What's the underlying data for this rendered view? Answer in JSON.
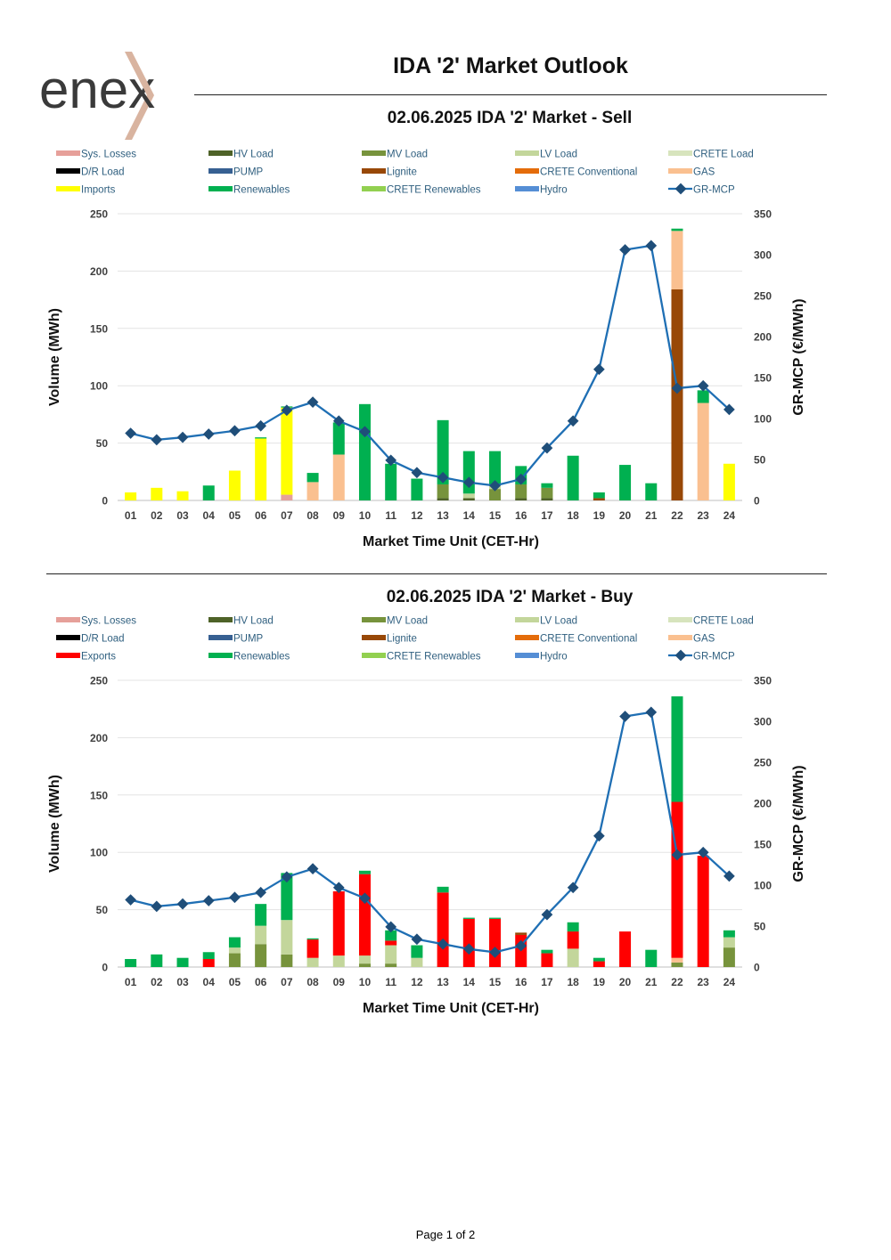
{
  "page": {
    "title": "IDA '2' Market Outlook",
    "logo_text": "enex",
    "footer": "Page 1 of 2"
  },
  "colors": {
    "sys_losses": "#e6a09a",
    "hv_load": "#4e6228",
    "mv_load": "#77933c",
    "lv_load": "#c3d69b",
    "crete_load": "#d7e4bd",
    "dr_load": "#000000",
    "pump": "#376092",
    "lignite": "#984807",
    "crete_conv": "#e46c0a",
    "gas": "#fac090",
    "imports": "#ffff00",
    "exports": "#ff0000",
    "renewables": "#00b050",
    "crete_renewables": "#92d050",
    "hydro": "#558ed5",
    "gr_mcp": "#1f6fb4",
    "gr_mcp_marker": "#1f4e79",
    "logo_accent": "#d9b4a0",
    "logo_text": "#3a3a3a"
  },
  "chart_data": [
    {
      "id": "sell",
      "type": "bar",
      "stacked": true,
      "title": "02.06.2025  IDA '2' Market - Sell",
      "xlabel": "Market Time Unit (CET-Hr)",
      "ylabel": "Volume (MWh)",
      "y2label": "GR-MCP (€/MWh)",
      "ylim": [
        0,
        250
      ],
      "yticks": [
        0,
        50,
        100,
        150,
        200,
        250
      ],
      "y2lim": [
        0,
        350
      ],
      "y2ticks": [
        0,
        50,
        100,
        150,
        200,
        250,
        300,
        350
      ],
      "categories": [
        "01",
        "02",
        "03",
        "04",
        "05",
        "06",
        "07",
        "08",
        "09",
        "10",
        "11",
        "12",
        "13",
        "14",
        "15",
        "16",
        "17",
        "18",
        "19",
        "20",
        "21",
        "22",
        "23",
        "24"
      ],
      "legend": [
        {
          "key": "sys_losses",
          "label": "Sys. Losses",
          "kind": "bar"
        },
        {
          "key": "hv_load",
          "label": "HV Load",
          "kind": "bar"
        },
        {
          "key": "mv_load",
          "label": "MV Load",
          "kind": "bar"
        },
        {
          "key": "lv_load",
          "label": "LV Load",
          "kind": "bar"
        },
        {
          "key": "crete_load",
          "label": "CRETE Load",
          "kind": "bar"
        },
        {
          "key": "dr_load",
          "label": "D/R Load",
          "kind": "bar"
        },
        {
          "key": "pump",
          "label": "PUMP",
          "kind": "bar"
        },
        {
          "key": "lignite",
          "label": "Lignite",
          "kind": "bar"
        },
        {
          "key": "crete_conv",
          "label": "CRETE Conventional",
          "kind": "bar"
        },
        {
          "key": "gas",
          "label": "GAS",
          "kind": "bar"
        },
        {
          "key": "imports",
          "label": "Imports",
          "kind": "bar"
        },
        {
          "key": "renewables",
          "label": "Renewables",
          "kind": "bar"
        },
        {
          "key": "crete_renewables",
          "label": "CRETE Renewables",
          "kind": "bar"
        },
        {
          "key": "hydro",
          "label": "Hydro",
          "kind": "bar"
        },
        {
          "key": "gr_mcp",
          "label": "GR-MCP",
          "kind": "line"
        }
      ],
      "series": [
        {
          "key": "sys_losses",
          "name": "Sys. Losses",
          "values": [
            0,
            0,
            0,
            0,
            0,
            0,
            5,
            0,
            0,
            0,
            0,
            0,
            0,
            0,
            0,
            0,
            0,
            0,
            0,
            0,
            0,
            0,
            0,
            0
          ]
        },
        {
          "key": "hv_load",
          "name": "HV Load",
          "values": [
            0,
            0,
            0,
            0,
            0,
            0,
            0,
            0,
            0,
            0,
            0,
            0,
            2,
            2,
            0,
            2,
            2,
            0,
            0,
            0,
            0,
            0,
            0,
            0
          ]
        },
        {
          "key": "mv_load",
          "name": "MV Load",
          "values": [
            0,
            0,
            0,
            0,
            0,
            0,
            0,
            0,
            0,
            0,
            0,
            0,
            12,
            0,
            10,
            12,
            9,
            0,
            0,
            0,
            0,
            0,
            0,
            0
          ]
        },
        {
          "key": "lv_load",
          "name": "LV Load",
          "values": [
            0,
            0,
            0,
            0,
            0,
            0,
            0,
            0,
            0,
            0,
            0,
            0,
            0,
            4,
            3,
            0,
            0,
            0,
            0,
            0,
            0,
            0,
            0,
            0
          ]
        },
        {
          "key": "lignite",
          "name": "Lignite",
          "values": [
            0,
            0,
            0,
            0,
            0,
            0,
            0,
            0,
            0,
            0,
            0,
            0,
            0,
            0,
            0,
            0,
            0,
            0,
            2,
            0,
            0,
            184,
            0,
            0
          ]
        },
        {
          "key": "gas",
          "name": "GAS",
          "values": [
            0,
            0,
            0,
            0,
            0,
            0,
            0,
            16,
            40,
            0,
            0,
            0,
            0,
            0,
            0,
            0,
            0,
            0,
            0,
            0,
            0,
            51,
            85,
            0
          ]
        },
        {
          "key": "imports",
          "name": "Imports",
          "values": [
            7,
            11,
            8,
            0,
            26,
            54,
            76,
            0,
            0,
            0,
            0,
            0,
            0,
            0,
            0,
            0,
            0,
            0,
            0,
            0,
            0,
            0,
            0,
            32
          ]
        },
        {
          "key": "renewables",
          "name": "Renewables",
          "values": [
            0,
            0,
            0,
            13,
            0,
            1,
            1,
            8,
            28,
            84,
            32,
            19,
            56,
            37,
            30,
            16,
            4,
            39,
            5,
            31,
            15,
            2,
            11,
            0
          ]
        }
      ],
      "line": {
        "key": "gr_mcp",
        "name": "GR-MCP",
        "axis": "y2",
        "values": [
          82,
          74,
          77,
          81,
          85,
          91,
          110,
          120,
          97,
          84,
          49,
          34,
          28,
          22,
          18,
          26,
          64,
          97,
          160,
          306,
          311,
          137,
          140,
          111
        ]
      }
    },
    {
      "id": "buy",
      "type": "bar",
      "stacked": true,
      "title": "02.06.2025  IDA '2' Market - Buy",
      "xlabel": "Market Time Unit (CET-Hr)",
      "ylabel": "Volume (MWh)",
      "y2label": "GR-MCP (€/MWh)",
      "ylim": [
        0,
        250
      ],
      "yticks": [
        0,
        50,
        100,
        150,
        200,
        250
      ],
      "y2lim": [
        0,
        350
      ],
      "y2ticks": [
        0,
        50,
        100,
        150,
        200,
        250,
        300,
        350
      ],
      "categories": [
        "01",
        "02",
        "03",
        "04",
        "05",
        "06",
        "07",
        "08",
        "09",
        "10",
        "11",
        "12",
        "13",
        "14",
        "15",
        "16",
        "17",
        "18",
        "19",
        "20",
        "21",
        "22",
        "23",
        "24"
      ],
      "legend": [
        {
          "key": "sys_losses",
          "label": "Sys. Losses",
          "kind": "bar"
        },
        {
          "key": "hv_load",
          "label": "HV Load",
          "kind": "bar"
        },
        {
          "key": "mv_load",
          "label": "MV Load",
          "kind": "bar"
        },
        {
          "key": "lv_load",
          "label": "LV Load",
          "kind": "bar"
        },
        {
          "key": "crete_load",
          "label": "CRETE Load",
          "kind": "bar"
        },
        {
          "key": "dr_load",
          "label": "D/R Load",
          "kind": "bar"
        },
        {
          "key": "pump",
          "label": "PUMP",
          "kind": "bar"
        },
        {
          "key": "lignite",
          "label": "Lignite",
          "kind": "bar"
        },
        {
          "key": "crete_conv",
          "label": "CRETE Conventional",
          "kind": "bar"
        },
        {
          "key": "gas",
          "label": "GAS",
          "kind": "bar"
        },
        {
          "key": "exports",
          "label": "Exports",
          "kind": "bar"
        },
        {
          "key": "renewables",
          "label": "Renewables",
          "kind": "bar"
        },
        {
          "key": "crete_renewables",
          "label": "CRETE Renewables",
          "kind": "bar"
        },
        {
          "key": "hydro",
          "label": "Hydro",
          "kind": "bar"
        },
        {
          "key": "gr_mcp",
          "label": "GR-MCP",
          "kind": "line"
        }
      ],
      "series": [
        {
          "key": "mv_load",
          "name": "MV Load",
          "values": [
            0,
            0,
            0,
            0,
            12,
            20,
            11,
            0,
            0,
            3,
            3,
            0,
            0,
            0,
            0,
            0,
            0,
            0,
            0,
            0,
            0,
            4,
            0,
            17
          ]
        },
        {
          "key": "lv_load",
          "name": "LV Load",
          "values": [
            0,
            0,
            0,
            0,
            5,
            16,
            30,
            8,
            10,
            7,
            16,
            8,
            0,
            0,
            0,
            0,
            0,
            16,
            0,
            0,
            0,
            0,
            0,
            9
          ]
        },
        {
          "key": "gas",
          "name": "GAS",
          "values": [
            0,
            0,
            0,
            0,
            0,
            0,
            0,
            0,
            0,
            0,
            0,
            0,
            0,
            0,
            0,
            0,
            0,
            0,
            0,
            0,
            0,
            4,
            0,
            0
          ]
        },
        {
          "key": "exports",
          "name": "Exports",
          "values": [
            0,
            0,
            0,
            7,
            0,
            0,
            0,
            16,
            56,
            71,
            4,
            0,
            65,
            42,
            42,
            28,
            12,
            15,
            5,
            31,
            0,
            136,
            97,
            0
          ]
        },
        {
          "key": "lignite",
          "name": "Lignite",
          "values": [
            0,
            0,
            0,
            0,
            0,
            0,
            0,
            0,
            0,
            0,
            0,
            0,
            0,
            0,
            0,
            2,
            0,
            0,
            0,
            0,
            0,
            0,
            0,
            0
          ]
        },
        {
          "key": "renewables",
          "name": "Renewables",
          "values": [
            7,
            11,
            8,
            6,
            9,
            19,
            41,
            1,
            0,
            3,
            9,
            11,
            5,
            1,
            1,
            0,
            3,
            8,
            3,
            0,
            15,
            92,
            0,
            6
          ]
        }
      ],
      "line": {
        "key": "gr_mcp",
        "name": "GR-MCP",
        "axis": "y2",
        "values": [
          82,
          74,
          77,
          81,
          85,
          91,
          110,
          120,
          97,
          84,
          49,
          34,
          28,
          22,
          18,
          26,
          64,
          97,
          160,
          306,
          311,
          137,
          140,
          111
        ]
      }
    }
  ]
}
